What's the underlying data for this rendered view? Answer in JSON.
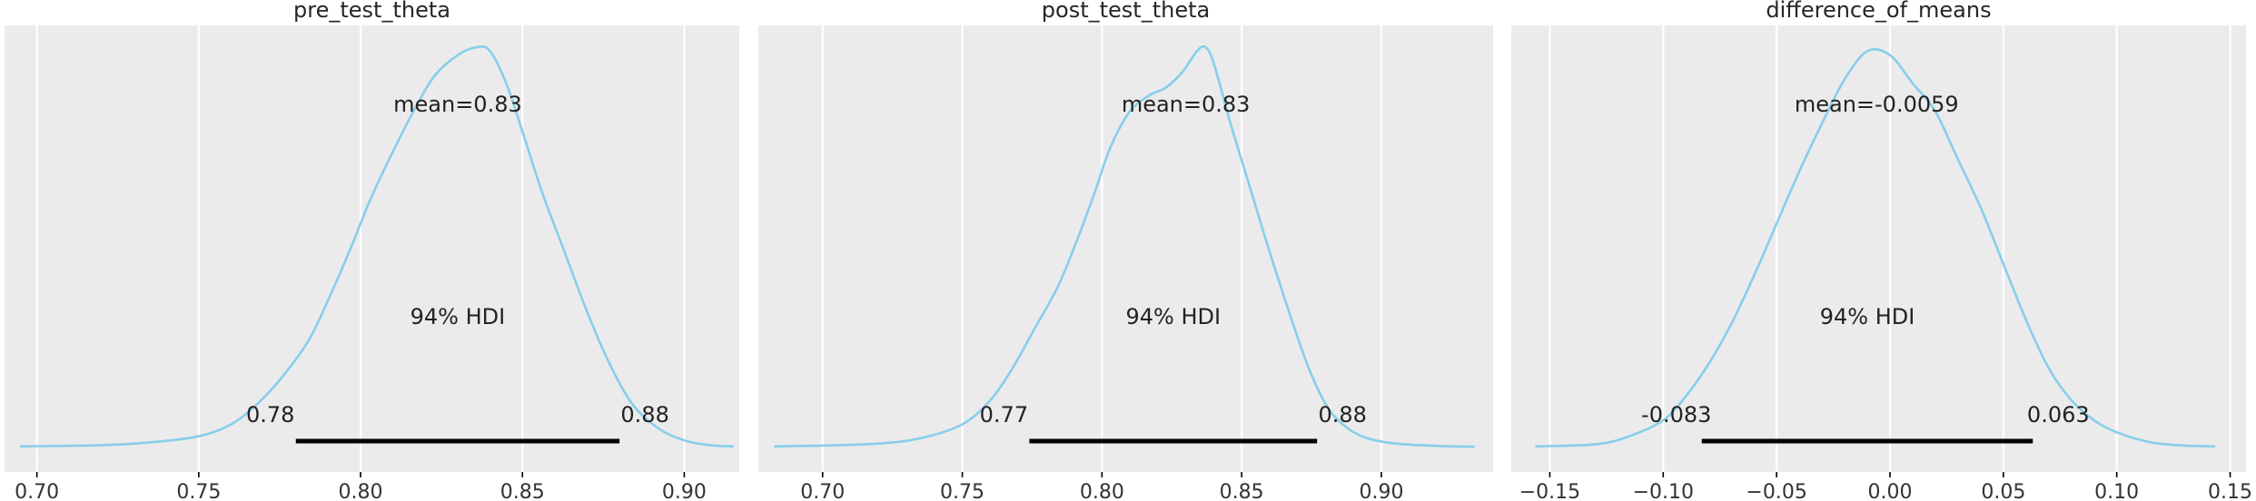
{
  "chart_data": [
    {
      "type": "area",
      "title": "pre_test_theta",
      "xlim": [
        0.69,
        0.917
      ],
      "ticks": [
        0.7,
        0.75,
        0.8,
        0.85,
        0.9
      ],
      "tick_labels": [
        "0.70",
        "0.75",
        "0.80",
        "0.85",
        "0.90"
      ],
      "mean_label": "mean=0.83",
      "mean": 0.83,
      "hdi_label": "94% HDI",
      "hdi": [
        0.78,
        0.88
      ],
      "hdi_low_label": "0.78",
      "hdi_high_label": "0.88",
      "density": {
        "x": [
          0.695,
          0.72,
          0.735,
          0.75,
          0.76,
          0.768,
          0.776,
          0.784,
          0.79,
          0.797,
          0.803,
          0.81,
          0.817,
          0.823,
          0.83,
          0.836,
          0.84,
          0.845,
          0.85,
          0.856,
          0.863,
          0.87,
          0.877,
          0.884,
          0.892,
          0.9,
          0.908,
          0.915
        ],
        "y": [
          0.005,
          0.008,
          0.015,
          0.03,
          0.06,
          0.11,
          0.18,
          0.27,
          0.37,
          0.5,
          0.62,
          0.74,
          0.85,
          0.93,
          0.98,
          1.0,
          0.99,
          0.91,
          0.79,
          0.64,
          0.49,
          0.34,
          0.21,
          0.11,
          0.05,
          0.02,
          0.008,
          0.005
        ]
      }
    },
    {
      "type": "area",
      "title": "post_test_theta",
      "xlim": [
        0.677,
        0.94
      ],
      "ticks": [
        0.7,
        0.75,
        0.8,
        0.85,
        0.9
      ],
      "tick_labels": [
        "0.70",
        "0.75",
        "0.80",
        "0.85",
        "0.90"
      ],
      "mean_label": "mean=0.83",
      "mean": 0.83,
      "hdi_label": "94% HDI",
      "hdi": [
        0.774,
        0.877
      ],
      "hdi_low_label": "0.77",
      "hdi_high_label": "0.88",
      "density": {
        "x": [
          0.683,
          0.7,
          0.72,
          0.735,
          0.75,
          0.76,
          0.768,
          0.776,
          0.784,
          0.79,
          0.797,
          0.803,
          0.81,
          0.817,
          0.823,
          0.829,
          0.834,
          0.837,
          0.84,
          0.846,
          0.853,
          0.86,
          0.867,
          0.874,
          0.881,
          0.888,
          0.895,
          0.905,
          0.92,
          0.933
        ],
        "y": [
          0.005,
          0.007,
          0.012,
          0.025,
          0.06,
          0.12,
          0.2,
          0.3,
          0.4,
          0.5,
          0.63,
          0.75,
          0.84,
          0.88,
          0.9,
          0.94,
          0.99,
          1.0,
          0.96,
          0.81,
          0.65,
          0.49,
          0.34,
          0.2,
          0.1,
          0.05,
          0.025,
          0.012,
          0.006,
          0.004
        ]
      }
    },
    {
      "type": "area",
      "title": "difference_of_means",
      "xlim": [
        -0.167,
        0.157
      ],
      "ticks": [
        -0.15,
        -0.1,
        -0.05,
        0.0,
        0.05,
        0.1,
        0.15
      ],
      "tick_labels": [
        "−0.15",
        "−0.10",
        "−0.05",
        "0.00",
        "0.05",
        "0.10",
        "0.15"
      ],
      "mean_label": "mean=-0.0059",
      "mean": -0.0059,
      "hdi_label": "94% HDI",
      "hdi": [
        -0.083,
        0.063
      ],
      "hdi_low_label": "-0.083",
      "hdi_high_label": "0.063",
      "density": {
        "x": [
          -0.156,
          -0.13,
          -0.115,
          -0.1,
          -0.09,
          -0.08,
          -0.07,
          -0.06,
          -0.05,
          -0.04,
          -0.03,
          -0.02,
          -0.01,
          0.0,
          0.01,
          0.02,
          0.03,
          0.04,
          0.05,
          0.06,
          0.07,
          0.08,
          0.09,
          0.1,
          0.115,
          0.13,
          0.143
        ],
        "y": [
          0.005,
          0.01,
          0.03,
          0.07,
          0.13,
          0.21,
          0.31,
          0.43,
          0.56,
          0.69,
          0.81,
          0.92,
          0.99,
          0.98,
          0.91,
          0.84,
          0.72,
          0.6,
          0.46,
          0.32,
          0.2,
          0.12,
          0.07,
          0.04,
          0.015,
          0.007,
          0.005
        ]
      }
    }
  ]
}
